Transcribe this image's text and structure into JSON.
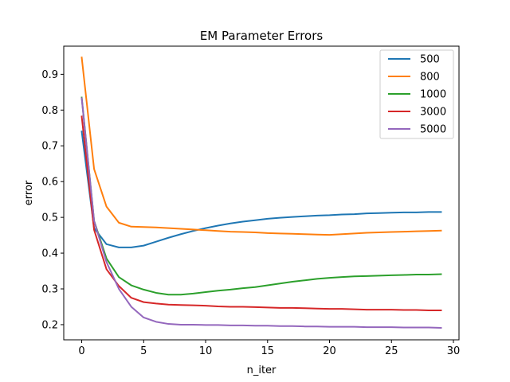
{
  "chart_data": {
    "type": "line",
    "title": "EM Parameter Errors",
    "xlabel": "n_iter",
    "ylabel": "error",
    "xlim": [
      -1.45,
      30.45
    ],
    "ylim": [
      0.1576,
      0.9787
    ],
    "xticks": [
      0,
      5,
      10,
      15,
      20,
      25,
      30
    ],
    "xtick_labels": [
      "0",
      "5",
      "10",
      "15",
      "20",
      "25",
      "30"
    ],
    "yticks": [
      0.2,
      0.3,
      0.4,
      0.5,
      0.6,
      0.7,
      0.8,
      0.9
    ],
    "ytick_labels": [
      "0.2",
      "0.3",
      "0.4",
      "0.5",
      "0.6",
      "0.7",
      "0.8",
      "0.9"
    ],
    "grid": false,
    "legend_position": "top-right",
    "x": [
      0,
      1,
      2,
      3,
      4,
      5,
      6,
      7,
      8,
      9,
      10,
      11,
      12,
      13,
      14,
      15,
      16,
      17,
      18,
      19,
      20,
      21,
      22,
      23,
      24,
      25,
      26,
      27,
      28,
      29
    ],
    "series": [
      {
        "name": "500",
        "color": "#1f77b4",
        "values": [
          0.74,
          0.47,
          0.425,
          0.416,
          0.416,
          0.421,
          0.432,
          0.443,
          0.453,
          0.462,
          0.47,
          0.477,
          0.483,
          0.488,
          0.492,
          0.496,
          0.499,
          0.501,
          0.503,
          0.505,
          0.506,
          0.508,
          0.509,
          0.511,
          0.512,
          0.513,
          0.514,
          0.514,
          0.515,
          0.515
        ]
      },
      {
        "name": "800",
        "color": "#ff7f0e",
        "values": [
          0.947,
          0.635,
          0.53,
          0.485,
          0.474,
          0.473,
          0.472,
          0.47,
          0.468,
          0.466,
          0.464,
          0.462,
          0.46,
          0.459,
          0.458,
          0.456,
          0.455,
          0.454,
          0.453,
          0.452,
          0.451,
          0.453,
          0.455,
          0.457,
          0.458,
          0.459,
          0.46,
          0.461,
          0.462,
          0.463
        ]
      },
      {
        "name": "1000",
        "color": "#2ca02c",
        "values": [
          0.835,
          0.49,
          0.385,
          0.333,
          0.31,
          0.298,
          0.289,
          0.284,
          0.284,
          0.287,
          0.291,
          0.295,
          0.298,
          0.302,
          0.305,
          0.31,
          0.315,
          0.32,
          0.324,
          0.328,
          0.331,
          0.333,
          0.335,
          0.336,
          0.337,
          0.338,
          0.339,
          0.34,
          0.34,
          0.341
        ]
      },
      {
        "name": "3000",
        "color": "#d62728",
        "values": [
          0.782,
          0.465,
          0.355,
          0.308,
          0.275,
          0.263,
          0.259,
          0.256,
          0.255,
          0.254,
          0.253,
          0.251,
          0.25,
          0.25,
          0.249,
          0.248,
          0.247,
          0.247,
          0.246,
          0.245,
          0.244,
          0.244,
          0.243,
          0.242,
          0.242,
          0.242,
          0.241,
          0.241,
          0.24,
          0.24
        ]
      },
      {
        "name": "5000",
        "color": "#9467bd",
        "values": [
          0.833,
          0.49,
          0.375,
          0.3,
          0.25,
          0.22,
          0.208,
          0.202,
          0.2,
          0.2,
          0.199,
          0.199,
          0.198,
          0.198,
          0.197,
          0.197,
          0.196,
          0.196,
          0.195,
          0.195,
          0.194,
          0.194,
          0.194,
          0.193,
          0.193,
          0.193,
          0.192,
          0.192,
          0.192,
          0.191
        ]
      }
    ]
  }
}
